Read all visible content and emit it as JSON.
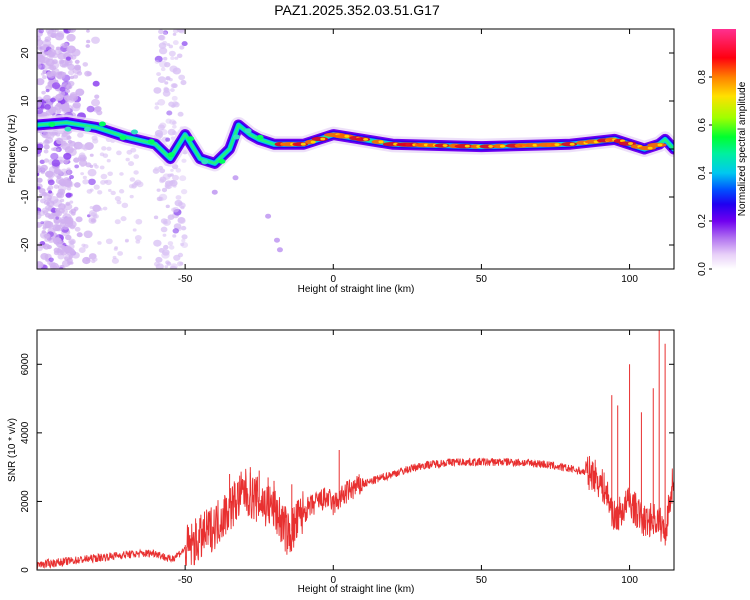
{
  "chart_data": [
    {
      "type": "heatmap",
      "title": "PAZ1.2025.352.03.51.G17",
      "xlabel": "Height of straight line (km)",
      "ylabel": "Frequency (Hz)",
      "xlim": [
        -100,
        115
      ],
      "ylim": [
        -25,
        25
      ],
      "xticks": [
        -50,
        0,
        50,
        100
      ],
      "yticks": [
        -20,
        -10,
        0,
        10,
        20
      ],
      "ridge": {
        "x": [
          -100,
          -90,
          -80,
          -70,
          -60,
          -55,
          -50,
          -45,
          -40,
          -35,
          -32,
          -28,
          -25,
          -20,
          -10,
          0,
          20,
          50,
          80,
          95,
          105,
          110,
          112,
          115
        ],
        "freq": [
          5,
          5.5,
          4.5,
          2.5,
          1,
          -2,
          3,
          -2,
          -3,
          0,
          5,
          3,
          2,
          1,
          1,
          3,
          1,
          0.5,
          1,
          2,
          0,
          1,
          2,
          0
        ]
      },
      "colorbar": {
        "label": "Normalized spectral amplitude",
        "range": [
          0,
          1
        ],
        "ticks": [
          "0.0",
          "0.2",
          "0.4",
          "0.6",
          "0.8"
        ],
        "colors": [
          "#f0f0f0",
          "#c8a0f0",
          "#8c2cf0",
          "#3c00f0",
          "#0064ff",
          "#00d2f0",
          "#00ff5a",
          "#c8ff00",
          "#ffd200",
          "#ff6400",
          "#ff0028",
          "#ff2096"
        ]
      }
    },
    {
      "type": "line",
      "xlabel": "Height of straight line (km)",
      "ylabel": "SNR (10 * v/v)",
      "xlim": [
        -100,
        115
      ],
      "ylim": [
        0,
        7000
      ],
      "xticks": [
        -50,
        0,
        50,
        100
      ],
      "yticks": [
        0,
        2000,
        4000,
        6000
      ],
      "color": "#e83030",
      "series": [
        {
          "name": "SNR",
          "x": [
            -100,
            -90,
            -80,
            -70,
            -60,
            -55,
            -50,
            -45,
            -40,
            -35,
            -30,
            -25,
            -20,
            -15,
            -10,
            -5,
            -2,
            0,
            5,
            10,
            20,
            30,
            40,
            50,
            60,
            70,
            80,
            88,
            92,
            95,
            100,
            105,
            108,
            110,
            112,
            115
          ],
          "y": [
            150,
            250,
            350,
            450,
            500,
            300,
            600,
            900,
            1300,
            1800,
            2300,
            2000,
            1800,
            1000,
            1700,
            2000,
            2100,
            1900,
            2300,
            2500,
            2800,
            3050,
            3150,
            3150,
            3150,
            3100,
            2950,
            2800,
            2300,
            1500,
            2000,
            1400,
            1500,
            1400,
            1100,
            2800
          ]
        }
      ],
      "spikes": [
        {
          "x": -35,
          "y": 2800
        },
        {
          "x": -31,
          "y": 2600
        },
        {
          "x": -28,
          "y": 3000
        },
        {
          "x": -25,
          "y": 2900
        },
        {
          "x": -22,
          "y": 2700
        },
        {
          "x": -20,
          "y": 2600
        },
        {
          "x": -14,
          "y": 2500
        },
        {
          "x": 2,
          "y": 3500
        },
        {
          "x": 94,
          "y": 5100
        },
        {
          "x": 96,
          "y": 4800
        },
        {
          "x": 100,
          "y": 6000
        },
        {
          "x": 104,
          "y": 4600
        },
        {
          "x": 108,
          "y": 5300
        },
        {
          "x": 110,
          "y": 7000
        },
        {
          "x": 112,
          "y": 6600
        }
      ]
    }
  ]
}
